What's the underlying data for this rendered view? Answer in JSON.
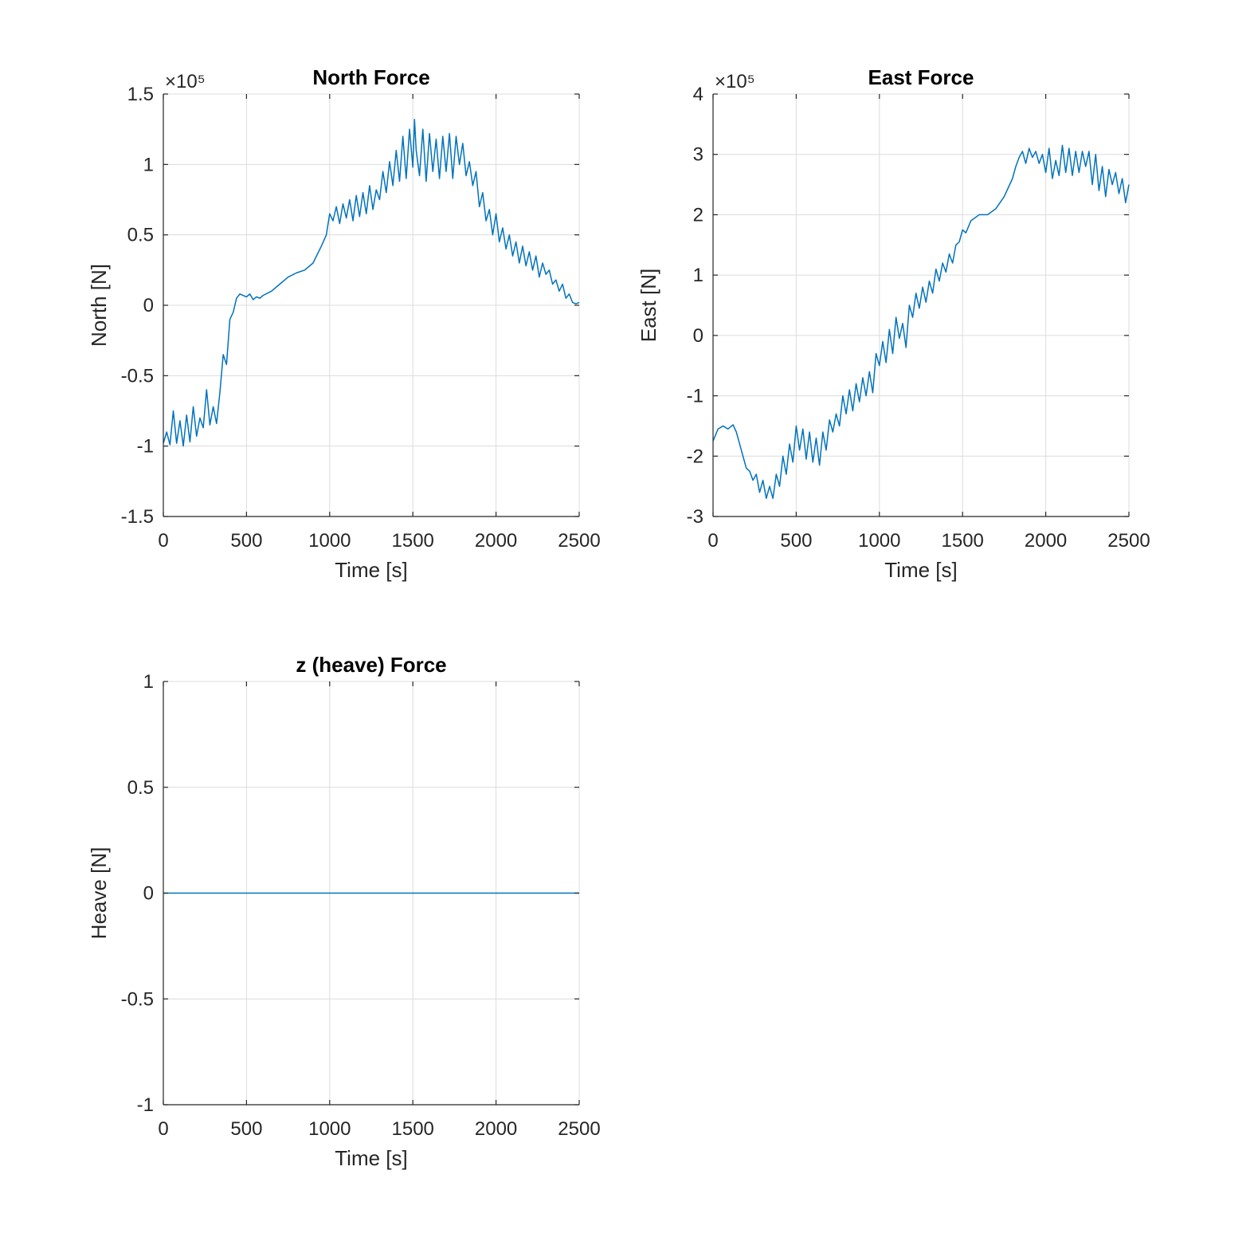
{
  "chart_data": [
    {
      "type": "line",
      "title": "North Force",
      "xlabel": "Time [s]",
      "ylabel": "North [N]",
      "exponent_label": "×10⁵",
      "xlim": [
        0,
        2500
      ],
      "ylim": [
        -1.5,
        1.5
      ],
      "xticks": [
        0,
        500,
        1000,
        1500,
        2000,
        2500
      ],
      "yticks": [
        -1.5,
        -1,
        -0.5,
        0,
        0.5,
        1,
        1.5
      ],
      "xtick_labels": [
        "0",
        "500",
        "1000",
        "1500",
        "2000",
        "2500"
      ],
      "ytick_labels": [
        "-1.5",
        "-1",
        "-0.5",
        "0",
        "0.5",
        "1",
        "1.5"
      ],
      "grid": true,
      "color": "#0072BD",
      "series": [
        {
          "x": [
            0,
            20,
            40,
            60,
            80,
            100,
            120,
            140,
            160,
            180,
            200,
            220,
            240,
            260,
            280,
            300,
            320,
            340,
            360,
            380,
            400,
            420,
            440,
            460,
            480,
            500,
            520,
            540,
            560,
            580,
            600,
            650,
            700,
            750,
            800,
            850,
            900,
            950,
            980,
            1000,
            1020,
            1040,
            1060,
            1080,
            1100,
            1120,
            1140,
            1160,
            1180,
            1200,
            1220,
            1240,
            1260,
            1280,
            1300,
            1320,
            1340,
            1360,
            1380,
            1400,
            1420,
            1440,
            1460,
            1480,
            1500,
            1510,
            1520,
            1540,
            1560,
            1580,
            1600,
            1620,
            1640,
            1660,
            1680,
            1700,
            1720,
            1740,
            1760,
            1780,
            1800,
            1820,
            1840,
            1860,
            1880,
            1900,
            1920,
            1940,
            1960,
            1980,
            2000,
            2020,
            2040,
            2060,
            2080,
            2100,
            2120,
            2140,
            2160,
            2180,
            2200,
            2220,
            2240,
            2260,
            2280,
            2300,
            2320,
            2340,
            2360,
            2380,
            2400,
            2420,
            2440,
            2460,
            2480,
            2500
          ],
          "y": [
            -0.98,
            -0.9,
            -0.99,
            -0.75,
            -0.98,
            -0.82,
            -1.0,
            -0.78,
            -0.97,
            -0.72,
            -0.93,
            -0.8,
            -0.87,
            -0.6,
            -0.85,
            -0.72,
            -0.84,
            -0.62,
            -0.35,
            -0.42,
            -0.1,
            -0.05,
            0.05,
            0.08,
            0.07,
            0.06,
            0.08,
            0.04,
            0.06,
            0.05,
            0.07,
            0.1,
            0.15,
            0.2,
            0.23,
            0.25,
            0.3,
            0.42,
            0.5,
            0.65,
            0.6,
            0.7,
            0.58,
            0.72,
            0.62,
            0.75,
            0.6,
            0.78,
            0.63,
            0.8,
            0.65,
            0.85,
            0.68,
            0.82,
            0.75,
            0.95,
            0.8,
            1.02,
            0.85,
            1.1,
            0.88,
            1.2,
            0.9,
            1.25,
            0.98,
            1.32,
            1.1,
            0.92,
            1.25,
            0.88,
            1.22,
            0.95,
            1.18,
            0.9,
            1.2,
            0.95,
            1.22,
            0.9,
            1.2,
            1.0,
            1.15,
            0.92,
            1.02,
            0.85,
            0.95,
            0.7,
            0.8,
            0.6,
            0.68,
            0.5,
            0.65,
            0.45,
            0.55,
            0.4,
            0.5,
            0.35,
            0.45,
            0.3,
            0.42,
            0.28,
            0.38,
            0.25,
            0.35,
            0.2,
            0.3,
            0.22,
            0.25,
            0.15,
            0.18,
            0.1,
            0.15,
            0.05,
            0.08,
            0.02,
            0.01,
            0.02
          ]
        }
      ]
    },
    {
      "type": "line",
      "title": "East Force",
      "xlabel": "Time [s]",
      "ylabel": "East [N]",
      "exponent_label": "×10⁵",
      "xlim": [
        0,
        2500
      ],
      "ylim": [
        -3,
        4
      ],
      "xticks": [
        0,
        500,
        1000,
        1500,
        2000,
        2500
      ],
      "yticks": [
        -3,
        -2,
        -1,
        0,
        1,
        2,
        3,
        4
      ],
      "xtick_labels": [
        "0",
        "500",
        "1000",
        "1500",
        "2000",
        "2500"
      ],
      "ytick_labels": [
        "-3",
        "-2",
        "-1",
        "0",
        "1",
        "2",
        "3",
        "4"
      ],
      "grid": true,
      "color": "#0072BD",
      "series": [
        {
          "x": [
            0,
            30,
            60,
            90,
            120,
            140,
            160,
            180,
            200,
            220,
            240,
            260,
            280,
            300,
            320,
            340,
            360,
            380,
            400,
            420,
            440,
            460,
            480,
            500,
            520,
            540,
            560,
            580,
            600,
            620,
            640,
            660,
            680,
            700,
            720,
            740,
            760,
            780,
            800,
            820,
            840,
            860,
            880,
            900,
            920,
            940,
            960,
            980,
            1000,
            1020,
            1040,
            1060,
            1080,
            1100,
            1120,
            1140,
            1160,
            1180,
            1200,
            1220,
            1240,
            1260,
            1280,
            1300,
            1320,
            1340,
            1360,
            1380,
            1400,
            1420,
            1440,
            1460,
            1480,
            1500,
            1520,
            1550,
            1600,
            1650,
            1700,
            1750,
            1800,
            1820,
            1840,
            1860,
            1880,
            1900,
            1920,
            1940,
            1960,
            1980,
            2000,
            2020,
            2040,
            2060,
            2080,
            2100,
            2120,
            2140,
            2160,
            2180,
            2200,
            2220,
            2240,
            2260,
            2280,
            2300,
            2320,
            2340,
            2360,
            2380,
            2400,
            2420,
            2440,
            2460,
            2480,
            2500
          ],
          "y": [
            -1.75,
            -1.55,
            -1.5,
            -1.55,
            -1.48,
            -1.6,
            -1.8,
            -2.0,
            -2.2,
            -2.25,
            -2.4,
            -2.3,
            -2.6,
            -2.4,
            -2.7,
            -2.5,
            -2.7,
            -2.3,
            -2.5,
            -2.0,
            -2.3,
            -1.8,
            -2.1,
            -1.5,
            -1.9,
            -1.55,
            -2.05,
            -1.6,
            -2.1,
            -1.7,
            -2.15,
            -1.6,
            -1.9,
            -1.4,
            -1.6,
            -1.3,
            -1.5,
            -1.0,
            -1.3,
            -0.9,
            -1.25,
            -0.8,
            -1.1,
            -0.7,
            -1.0,
            -0.6,
            -0.95,
            -0.3,
            -0.5,
            -0.1,
            -0.45,
            0.1,
            -0.3,
            0.3,
            -0.05,
            0.2,
            -0.2,
            0.5,
            0.3,
            0.7,
            0.45,
            0.8,
            0.55,
            0.9,
            0.7,
            1.1,
            0.9,
            1.2,
            1.05,
            1.35,
            1.2,
            1.5,
            1.55,
            1.75,
            1.7,
            1.9,
            2.0,
            2.0,
            2.1,
            2.3,
            2.6,
            2.8,
            2.95,
            3.05,
            2.85,
            3.1,
            2.95,
            3.05,
            2.85,
            3.0,
            2.7,
            3.1,
            2.6,
            2.9,
            2.65,
            3.15,
            2.7,
            3.1,
            2.65,
            3.05,
            2.7,
            3.05,
            2.8,
            3.05,
            2.5,
            3.0,
            2.4,
            2.8,
            2.3,
            2.75,
            2.5,
            2.7,
            2.35,
            2.6,
            2.2,
            2.5
          ]
        }
      ]
    },
    {
      "type": "line",
      "title": "z (heave) Force",
      "xlabel": "Time [s]",
      "ylabel": "Heave [N]",
      "xlim": [
        0,
        2500
      ],
      "ylim": [
        -1,
        1
      ],
      "xticks": [
        0,
        500,
        1000,
        1500,
        2000,
        2500
      ],
      "yticks": [
        -1,
        -0.5,
        0,
        0.5,
        1
      ],
      "xtick_labels": [
        "0",
        "500",
        "1000",
        "1500",
        "2000",
        "2500"
      ],
      "ytick_labels": [
        "-1",
        "-0.5",
        "0",
        "0.5",
        "1"
      ],
      "grid": true,
      "color": "#0072BD",
      "series": [
        {
          "x": [
            0,
            2500
          ],
          "y": [
            0,
            0
          ]
        }
      ]
    }
  ]
}
